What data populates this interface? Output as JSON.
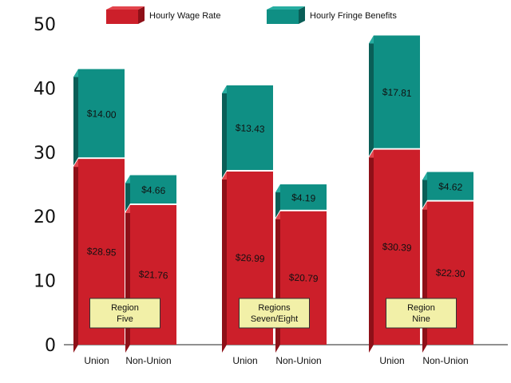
{
  "chart_data": {
    "type": "bar",
    "stacked": true,
    "style": "3d",
    "ylim": [
      0,
      50
    ],
    "yticks": [
      0,
      10,
      20,
      30,
      40,
      50
    ],
    "grid": false,
    "legend": {
      "placement": "top",
      "entries": [
        {
          "name": "Hourly Wage Rate",
          "color": "#cc1f2a"
        },
        {
          "name": "Hourly Fringe Benefits",
          "color": "#0f8f84"
        }
      ]
    },
    "groups": [
      {
        "region_label": [
          "Region",
          "Five"
        ],
        "bars": [
          {
            "category": "Union",
            "wage": 28.95,
            "wage_label": "$28.95",
            "fringe": 14.0,
            "fringe_label": "$14.00"
          },
          {
            "category": "Non-Union",
            "wage": 21.76,
            "wage_label": "$21.76",
            "fringe": 4.66,
            "fringe_label": "$4.66"
          }
        ]
      },
      {
        "region_label": [
          "Regions",
          "Seven/Eight"
        ],
        "bars": [
          {
            "category": "Union",
            "wage": 26.99,
            "wage_label": "$26.99",
            "fringe": 13.43,
            "fringe_label": "$13.43"
          },
          {
            "category": "Non-Union",
            "wage": 20.79,
            "wage_label": "$20.79",
            "fringe": 4.19,
            "fringe_label": "$4.19"
          }
        ]
      },
      {
        "region_label": [
          "Region",
          "Nine"
        ],
        "bars": [
          {
            "category": "Union",
            "wage": 30.39,
            "wage_label": "$30.39",
            "fringe": 17.81,
            "fringe_label": "$17.81"
          },
          {
            "category": "Non-Union",
            "wage": 22.3,
            "wage_label": "$22.30",
            "fringe": 4.62,
            "fringe_label": "$4.62"
          }
        ]
      }
    ]
  }
}
